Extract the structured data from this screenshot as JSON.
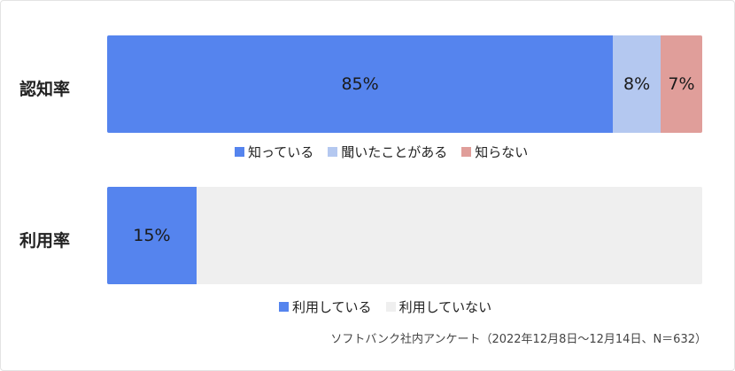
{
  "chart_data": [
    {
      "type": "bar",
      "orientation": "horizontal",
      "stacked": true,
      "title": "",
      "categories": [
        "認知率"
      ],
      "xlim": [
        0,
        100
      ],
      "series": [
        {
          "name": "知っている",
          "values": [
            85
          ],
          "label": "85%",
          "color": "#5584ee"
        },
        {
          "name": "聞いたことがある",
          "values": [
            8
          ],
          "label": "8%",
          "color": "#b4c8f0"
        },
        {
          "name": "知らない",
          "values": [
            7
          ],
          "label": "7%",
          "color": "#e09e9a"
        }
      ],
      "legend": "bottom"
    },
    {
      "type": "bar",
      "orientation": "horizontal",
      "stacked": true,
      "title": "",
      "categories": [
        "利用率"
      ],
      "xlim": [
        0,
        100
      ],
      "series": [
        {
          "name": "利用している",
          "values": [
            15
          ],
          "label": "15%",
          "color": "#5584ee"
        },
        {
          "name": "利用していない",
          "values": [
            85
          ],
          "label": "",
          "color": "#efefef"
        }
      ],
      "legend": "bottom"
    }
  ],
  "footnote": "ソフトバンク社内アンケート（2022年12月8日〜12月14日、N＝632）"
}
